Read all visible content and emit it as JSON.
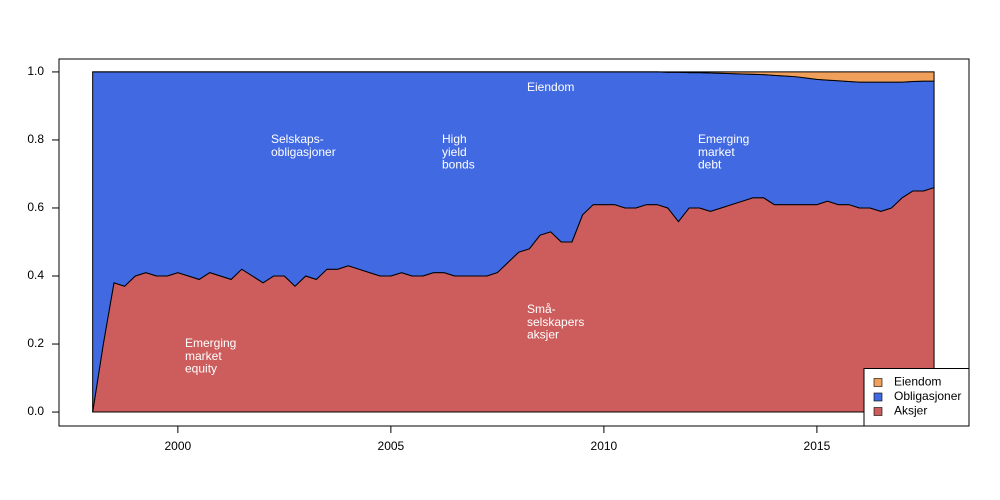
{
  "chart_data": {
    "type": "stacked_area",
    "x": [
      1998,
      1998.25,
      1998.5,
      1998.75,
      1999,
      1999.25,
      1999.5,
      1999.75,
      2000,
      2000.25,
      2000.5,
      2000.75,
      2001,
      2001.25,
      2001.5,
      2001.75,
      2002,
      2002.25,
      2002.5,
      2002.75,
      2003,
      2003.25,
      2003.5,
      2003.75,
      2004,
      2004.25,
      2004.5,
      2004.75,
      2005,
      2005.25,
      2005.5,
      2005.75,
      2006,
      2006.25,
      2006.5,
      2006.75,
      2007,
      2007.25,
      2007.5,
      2007.75,
      2008,
      2008.25,
      2008.5,
      2008.75,
      2009,
      2009.25,
      2009.5,
      2009.75,
      2010,
      2010.25,
      2010.5,
      2010.75,
      2011,
      2011.25,
      2011.5,
      2011.75,
      2012,
      2012.25,
      2012.5,
      2012.75,
      2013,
      2013.25,
      2013.5,
      2013.75,
      2014,
      2014.25,
      2014.5,
      2014.75,
      2015,
      2015.25,
      2015.5,
      2015.75,
      2016,
      2016.25,
      2016.5,
      2016.75,
      2017,
      2017.25,
      2017.5,
      2017.75
    ],
    "series": [
      {
        "name": "Aksjer",
        "color": "#cd5c5c",
        "values": [
          0,
          0.2,
          0.38,
          0.37,
          0.4,
          0.41,
          0.4,
          0.4,
          0.41,
          0.4,
          0.39,
          0.41,
          0.4,
          0.39,
          0.42,
          0.4,
          0.38,
          0.4,
          0.4,
          0.37,
          0.4,
          0.39,
          0.42,
          0.42,
          0.43,
          0.42,
          0.41,
          0.4,
          0.4,
          0.41,
          0.4,
          0.4,
          0.41,
          0.41,
          0.4,
          0.4,
          0.4,
          0.4,
          0.41,
          0.44,
          0.47,
          0.48,
          0.52,
          0.53,
          0.5,
          0.5,
          0.58,
          0.61,
          0.61,
          0.61,
          0.6,
          0.6,
          0.61,
          0.61,
          0.6,
          0.56,
          0.6,
          0.6,
          0.59,
          0.6,
          0.61,
          0.62,
          0.63,
          0.63,
          0.61,
          0.61,
          0.61,
          0.61,
          0.61,
          0.62,
          0.61,
          0.61,
          0.6,
          0.6,
          0.59,
          0.6,
          0.63,
          0.65,
          0.65,
          0.66
        ]
      },
      {
        "name": "Obligasjoner",
        "color": "#4169e1",
        "values": [
          1,
          0.8,
          0.62,
          0.63,
          0.6,
          0.59,
          0.6,
          0.6,
          0.59,
          0.6,
          0.61,
          0.59,
          0.6,
          0.61,
          0.58,
          0.6,
          0.62,
          0.6,
          0.6,
          0.63,
          0.6,
          0.61,
          0.58,
          0.58,
          0.57,
          0.58,
          0.59,
          0.6,
          0.6,
          0.59,
          0.6,
          0.6,
          0.59,
          0.59,
          0.6,
          0.6,
          0.6,
          0.6,
          0.59,
          0.56,
          0.53,
          0.52,
          0.48,
          0.47,
          0.5,
          0.5,
          0.42,
          0.39,
          0.39,
          0.39,
          0.4,
          0.4,
          0.39,
          0.39,
          0.399,
          0.439,
          0.398,
          0.398,
          0.407,
          0.396,
          0.385,
          0.374,
          0.363,
          0.362,
          0.38,
          0.378,
          0.376,
          0.372,
          0.368,
          0.356,
          0.364,
          0.362,
          0.37,
          0.37,
          0.38,
          0.37,
          0.34,
          0.322,
          0.323,
          0.313
        ]
      },
      {
        "name": "Eiendom",
        "color": "#f0a05a",
        "values": [
          0,
          0,
          0,
          0,
          0,
          0,
          0,
          0,
          0,
          0,
          0,
          0,
          0,
          0,
          0,
          0,
          0,
          0,
          0,
          0,
          0,
          0,
          0,
          0,
          0,
          0,
          0,
          0,
          0,
          0,
          0,
          0,
          0,
          0,
          0,
          0,
          0,
          0,
          0,
          0,
          0,
          0,
          0,
          0,
          0,
          0,
          0,
          0,
          0,
          0,
          0,
          0,
          0,
          0,
          0.001,
          0.001,
          0.002,
          0.002,
          0.003,
          0.004,
          0.005,
          0.006,
          0.007,
          0.008,
          0.01,
          0.012,
          0.014,
          0.018,
          0.022,
          0.024,
          0.026,
          0.028,
          0.03,
          0.03,
          0.03,
          0.03,
          0.03,
          0.028,
          0.027,
          0.027
        ]
      }
    ],
    "xlim": [
      1997.21,
      2018.57
    ],
    "xticks": [
      2000,
      2005,
      2010,
      2015
    ],
    "ylim": [
      -0.041,
      1.038
    ],
    "yticks": [
      {
        "value": 0,
        "label": "0.0"
      },
      0.2,
      0.4,
      0.6,
      0.8,
      {
        "value": 1,
        "label": "1.0"
      }
    ],
    "legend": "bottom-right",
    "annotations": [
      {
        "lines": [
          "Eiendom"
        ]
      },
      {
        "lines": [
          "Selskaps-",
          "obligasjoner"
        ]
      },
      {
        "lines": [
          "High",
          "yield",
          "bonds"
        ]
      },
      {
        "lines": [
          "Emerging",
          "market",
          "debt"
        ]
      },
      {
        "lines": [
          "Emerging",
          "market",
          "equity"
        ]
      },
      {
        "lines": [
          "Små-",
          "selskapers",
          "aksjer"
        ]
      }
    ]
  }
}
